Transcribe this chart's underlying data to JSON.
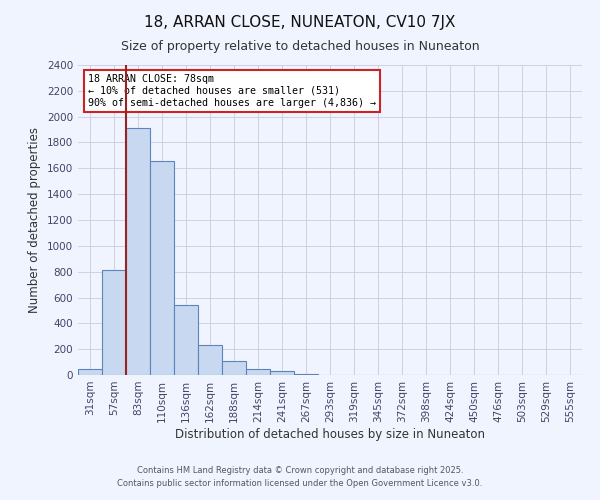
{
  "title": "18, ARRAN CLOSE, NUNEATON, CV10 7JX",
  "subtitle": "Size of property relative to detached houses in Nuneaton",
  "xlabel": "Distribution of detached houses by size in Nuneaton",
  "ylabel": "Number of detached properties",
  "bar_color": "#c8d8f0",
  "bar_edge_color": "#5b84bb",
  "background_color": "#f0f4ff",
  "grid_color": "#c8cce0",
  "categories": [
    "31sqm",
    "57sqm",
    "83sqm",
    "110sqm",
    "136sqm",
    "162sqm",
    "188sqm",
    "214sqm",
    "241sqm",
    "267sqm",
    "293sqm",
    "319sqm",
    "345sqm",
    "372sqm",
    "398sqm",
    "424sqm",
    "450sqm",
    "476sqm",
    "503sqm",
    "529sqm",
    "555sqm"
  ],
  "values": [
    50,
    810,
    1910,
    1655,
    545,
    235,
    110,
    50,
    28,
    5,
    0,
    0,
    0,
    0,
    0,
    0,
    0,
    0,
    0,
    0,
    0
  ],
  "ylim": [
    0,
    2400
  ],
  "yticks": [
    0,
    200,
    400,
    600,
    800,
    1000,
    1200,
    1400,
    1600,
    1800,
    2000,
    2200,
    2400
  ],
  "annotation_line1": "18 ARRAN CLOSE: 78sqm",
  "annotation_line2": "← 10% of detached houses are smaller (531)",
  "annotation_line3": "90% of semi-detached houses are larger (4,836) →",
  "footnote1": "Contains HM Land Registry data © Crown copyright and database right 2025.",
  "footnote2": "Contains public sector information licensed under the Open Government Licence v3.0.",
  "vline_color": "#992222",
  "annotation_box_edge_color": "#cc2222",
  "annotation_box_face_color": "#ffffff",
  "title_fontsize": 11,
  "subtitle_fontsize": 9,
  "axis_label_fontsize": 8.5,
  "tick_fontsize": 7.5,
  "footnote_fontsize": 6.0
}
